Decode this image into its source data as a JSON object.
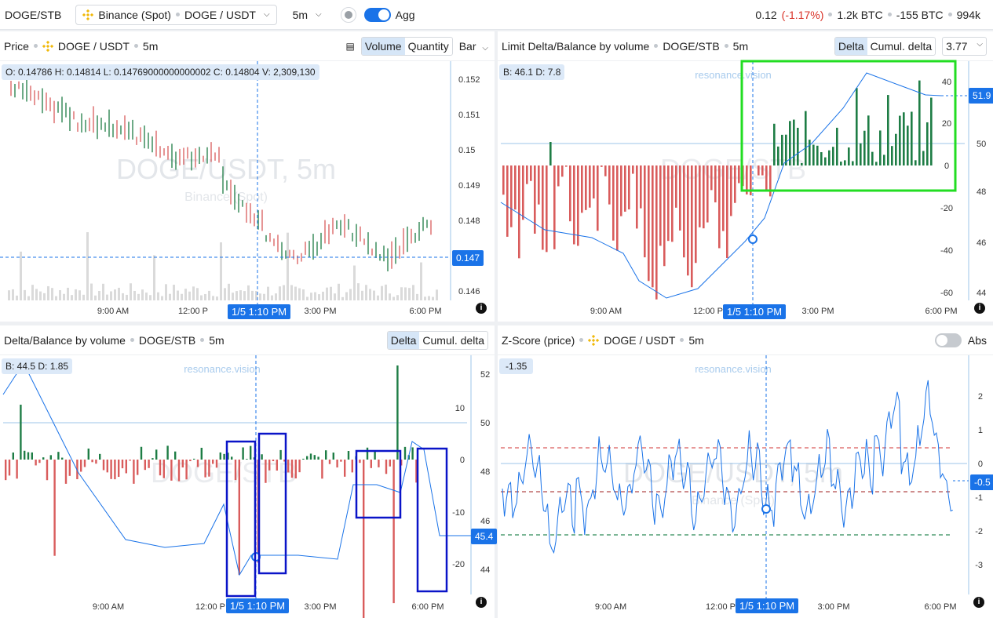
{
  "topbar": {
    "pair": "DOGE/STB",
    "exchange_label": "Binance (Spot)",
    "symbol": "DOGE / USDT",
    "timeframe": "5m",
    "agg_label": "Agg",
    "stats": {
      "change": "0.12",
      "change_pct": "(-1.17%)",
      "vol_btc": "1.2k BTC",
      "delta_btc": "-155 BTC",
      "total": "994k"
    }
  },
  "price_panel": {
    "title": "Price",
    "symbol": "DOGE / USDT",
    "tf": "5m",
    "seg": [
      "Volume",
      "Quantity"
    ],
    "chart_type": "Bar",
    "ohlc": "O: 0.14786 H: 0.14814 L: 0.14769000000000002 C: 0.14804 V: 2,309,130",
    "price_tag": "0.147",
    "watermark": "DOGE/USDT, 5m",
    "watermark_sub": "Binance (Spot)",
    "watermark_rv": "resonance.vision",
    "y_ticks": [
      "0.152",
      "0.151",
      "0.15",
      "0.149",
      "0.148",
      "0.147",
      "0.146"
    ],
    "x_ticks": [
      "9:00 AM",
      "12:00 P",
      "3:00 PM",
      "6:00 PM"
    ],
    "cursor_time": "1/5 1:10 PM"
  },
  "limit_panel": {
    "title": "Limit Delta/Balance by volume",
    "pair": "DOGE/STB",
    "tf": "5m",
    "seg": [
      "Delta",
      "Cumul. delta"
    ],
    "select": "3.77",
    "bd": "B: 46.1 D: 7.8",
    "watermark_rv": "resonance.vision",
    "price_tag": "51.9",
    "y_left": [
      "40",
      "20",
      "0",
      "-20",
      "-40",
      "-60"
    ],
    "y_right": [
      "50",
      "48",
      "46",
      "44"
    ],
    "x_ticks": [
      "9:00 AM",
      "12:00 P",
      "3:00 PM",
      "6:00 PM"
    ],
    "cursor_time": "1/5 1:10 PM"
  },
  "delta_panel": {
    "title": "Delta/Balance by volume",
    "pair": "DOGE/STB",
    "tf": "5m",
    "seg": [
      "Delta",
      "Cumul. delta"
    ],
    "bd": "B: 44.5 D: 1.85",
    "watermark_rv": "resonance.vision",
    "price_tag": "45.4",
    "y_left": [
      "10",
      "0",
      "-10",
      "-20"
    ],
    "y_right": [
      "52",
      "50",
      "48",
      "46",
      "44"
    ],
    "x_ticks": [
      "9:00 AM",
      "12:00 P",
      "3:00 PM",
      "6:00 PM"
    ],
    "cursor_time": "1/5 1:10 PM"
  },
  "zscore_panel": {
    "title": "Z-Score (price)",
    "symbol": "DOGE / USDT",
    "tf": "5m",
    "abs_label": "Abs",
    "value_badge": "-1.35",
    "watermark": "DOGE/USDT, 5m",
    "watermark_sub": "Binance (Spot)",
    "watermark_rv": "resonance.vision",
    "price_tag": "-0.5",
    "y_ticks": [
      "2",
      "1",
      "0",
      "-1",
      "-2",
      "-3"
    ],
    "x_ticks": [
      "9:00 AM",
      "12:00 P",
      "3:00 PM",
      "6:00 PM"
    ],
    "cursor_time": "1/5 1:10 PM"
  },
  "colors": {
    "accent": "#1a73e8",
    "up": "#1e7d45",
    "down": "#d95c5c",
    "highlight_green": "#22dd22",
    "highlight_blue": "#0a14c8"
  }
}
